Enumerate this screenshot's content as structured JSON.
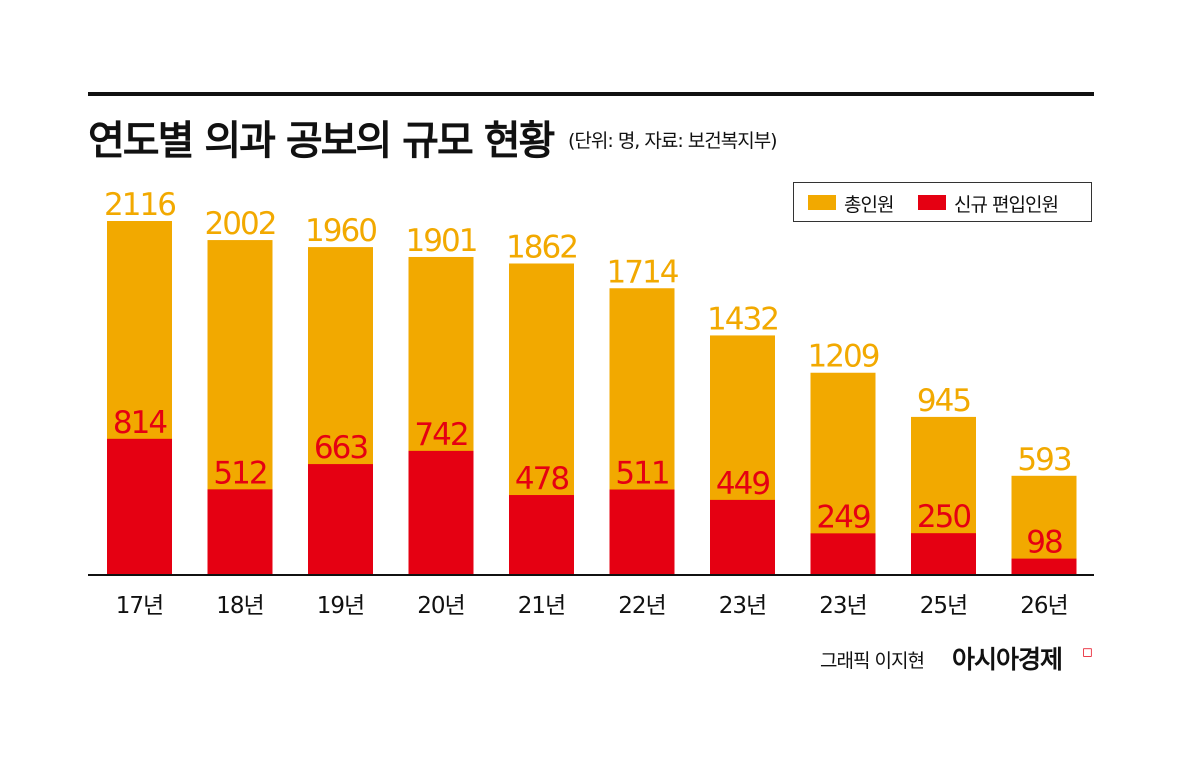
{
  "title": "연도별 의과 공보의 규모 현황",
  "subtitle": "(단위: 명, 자료: 보건복지부)",
  "colors": {
    "total": "#f2a900",
    "new": "#e50012",
    "axis": "#111111"
  },
  "legend": {
    "total": "총인원",
    "new": "신규 편입인원"
  },
  "credit": {
    "graphic": "그래픽 이지현",
    "brand": "아시아경제",
    "brand_mark": "◻"
  },
  "chart_data": {
    "type": "bar",
    "categories": [
      "17년",
      "18년",
      "19년",
      "20년",
      "21년",
      "22년",
      "23년",
      "23년",
      "25년",
      "26년"
    ],
    "series": [
      {
        "name": "총인원",
        "values": [
          2116,
          2002,
          1960,
          1901,
          1862,
          1714,
          1432,
          1209,
          945,
          593
        ]
      },
      {
        "name": "신규 편입인원",
        "values": [
          814,
          512,
          663,
          742,
          478,
          511,
          449,
          249,
          250,
          98
        ]
      }
    ],
    "title": "연도별 의과 공보의 규모 현황",
    "subtitle": "(단위: 명, 자료: 보건복지부)",
    "ylim": [
      0,
      2116
    ],
    "grid": false,
    "legend_position": "top-right"
  }
}
